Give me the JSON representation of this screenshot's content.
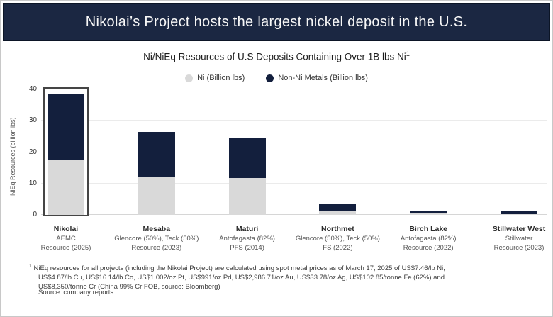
{
  "banner": {
    "title": "Nikolai’s Project hosts the largest nickel deposit in the U.S.",
    "bg_color": "#1b2742",
    "border_color": "#0c1526",
    "text_color": "#f7f7f7"
  },
  "chart_data": {
    "type": "bar",
    "subtype": "stacked",
    "title": "Ni/NiEq Resources of U.S Deposits Containing Over 1B lbs Ni",
    "title_superscript": "1",
    "ylabel": "NiEq Resources (billion lbs)",
    "ylim": [
      0,
      40
    ],
    "yticks": [
      0,
      10,
      20,
      30,
      40
    ],
    "grid": "horizontal",
    "legend_position": "top-center",
    "categories": [
      {
        "name": "Nikolai",
        "owner": "AEMC",
        "stage": "Resource (2025)",
        "highlighted": true
      },
      {
        "name": "Mesaba",
        "owner": "Glencore (50%), Teck (50%)",
        "stage": "Resource (2023)",
        "highlighted": false
      },
      {
        "name": "Maturi",
        "owner": "Antofagasta (82%)",
        "stage": "PFS (2014)",
        "highlighted": false
      },
      {
        "name": "Northmet",
        "owner": "Glencore (50%), Teck (50%)",
        "stage": "FS (2022)",
        "highlighted": false
      },
      {
        "name": "Birch Lake",
        "owner": "Antofagasta (82%)",
        "stage": "Resource (2022)",
        "highlighted": false
      },
      {
        "name": "Stillwater West",
        "owner": "Stillwater",
        "stage": "Resource (2023)",
        "highlighted": false
      }
    ],
    "series": [
      {
        "name": "Ni (Billion lbs)",
        "color": "#d9d9d9",
        "values": [
          17.5,
          12.2,
          11.7,
          1.2,
          0.4,
          0.2
        ]
      },
      {
        "name": "Non-Ni Metals (Billion lbs)",
        "color": "#131f3d",
        "values": [
          21.0,
          14.3,
          12.8,
          2.3,
          1.0,
          1.0
        ]
      }
    ],
    "totals_niEq": [
      38.5,
      26.5,
      24.5,
      3.5,
      1.4,
      1.2
    ]
  },
  "footnote": {
    "superscript": "1",
    "lines": [
      " NiEq resources for all projects (including the Nikolai Project) are calculated using spot metal prices as of March 17, 2025 of US$7.46/lb Ni,",
      "US$4.87/lb Cu, US$16.14/lb Co, US$1,002/oz Pt, US$991/oz Pd, US$2,986.71/oz Au, US$33.78/oz Ag, US$102.85/tonne Fe (62%) and",
      "US$8,350/tonne Cr (China 99% Cr FOB, source: Bloomberg)"
    ],
    "source": "Source: company reports"
  }
}
